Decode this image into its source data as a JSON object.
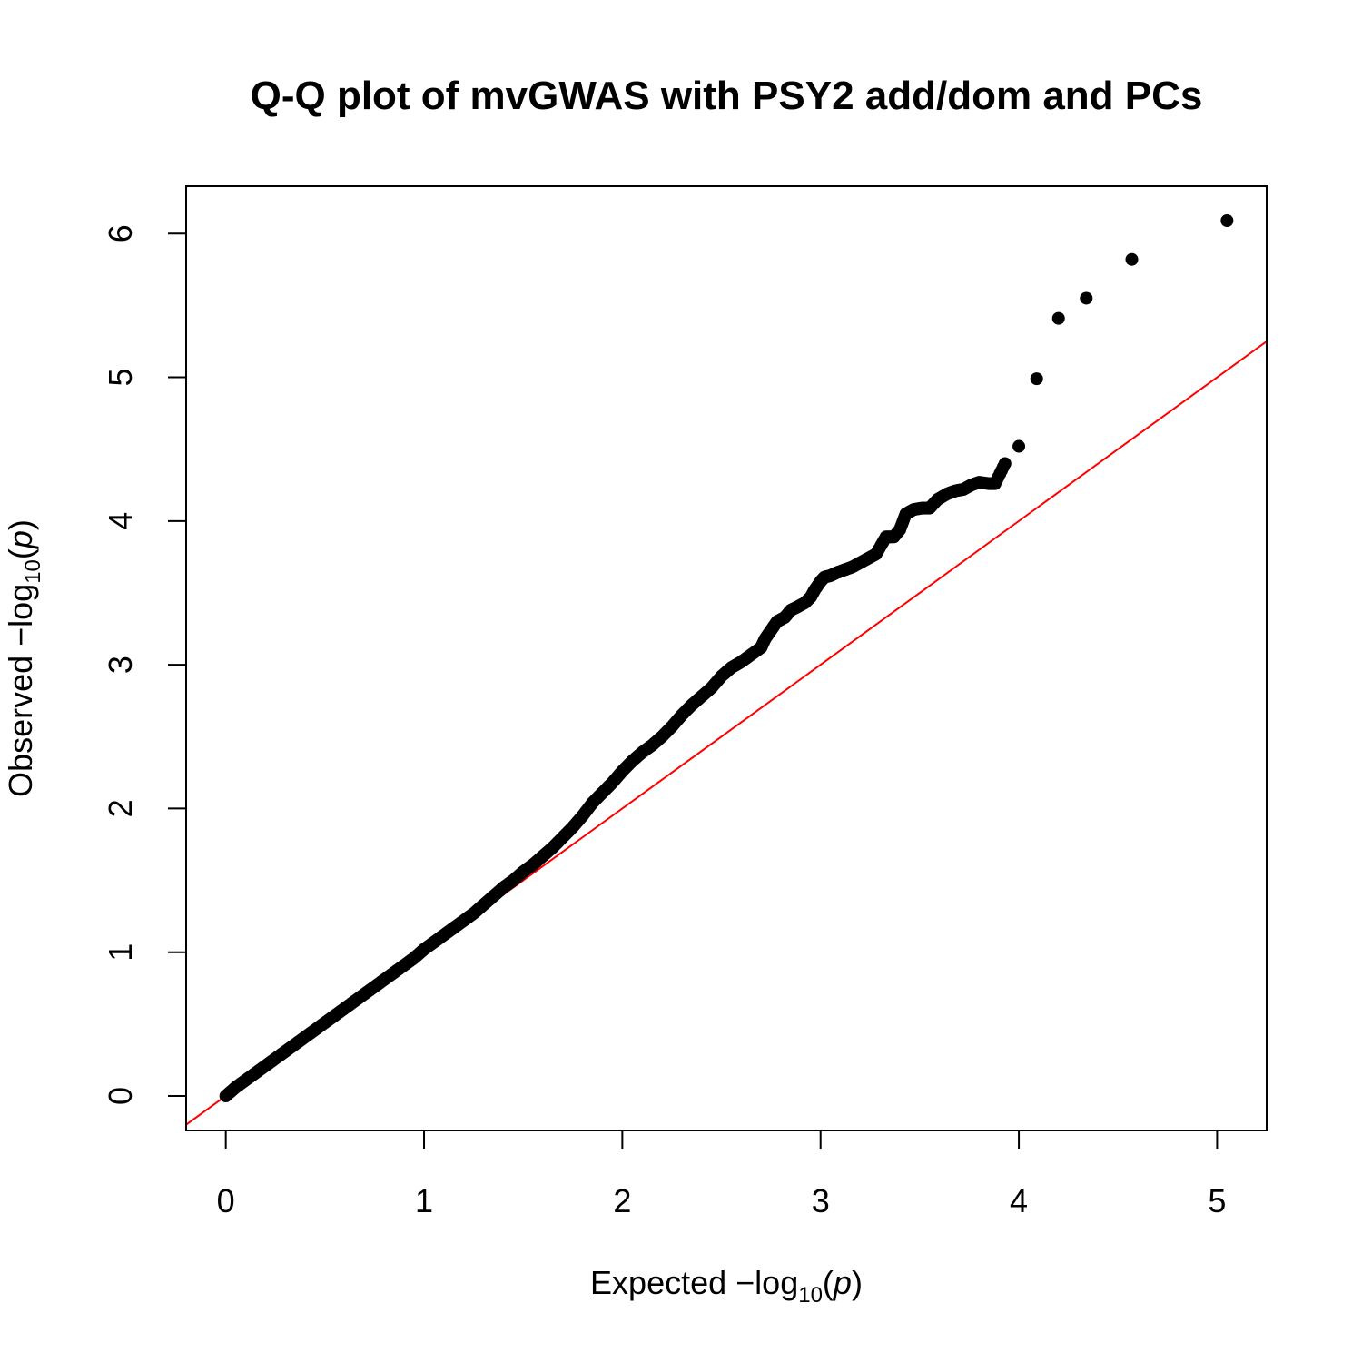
{
  "chart_data": {
    "type": "scatter",
    "title": "Q-Q plot of mvGWAS with PSY2 add/dom and PCs",
    "xlabel": {
      "prefix": "Expected  −log",
      "sub": "10",
      "open": "(",
      "var": "p",
      "close": ")"
    },
    "ylabel": {
      "prefix": "Observed  −log",
      "sub": "10",
      "open": "(",
      "var": "p",
      "close": ")"
    },
    "xlim": [
      -0.2,
      5.25
    ],
    "ylim": [
      -0.24,
      6.33
    ],
    "xticks": [
      "0",
      "1",
      "2",
      "3",
      "4",
      "5"
    ],
    "yticks": [
      "0",
      "1",
      "2",
      "3",
      "4",
      "5",
      "6"
    ],
    "grid": false,
    "reference_line": {
      "slope": 1,
      "intercept": 0,
      "color": "#ff0000"
    },
    "point_color": "#000000",
    "points": [
      [
        0.0,
        0.0
      ],
      [
        0.05,
        0.06
      ],
      [
        0.1,
        0.11
      ],
      [
        0.15,
        0.16
      ],
      [
        0.2,
        0.21
      ],
      [
        0.25,
        0.26
      ],
      [
        0.3,
        0.31
      ],
      [
        0.35,
        0.36
      ],
      [
        0.4,
        0.41
      ],
      [
        0.45,
        0.46
      ],
      [
        0.5,
        0.51
      ],
      [
        0.55,
        0.56
      ],
      [
        0.6,
        0.61
      ],
      [
        0.65,
        0.66
      ],
      [
        0.7,
        0.71
      ],
      [
        0.75,
        0.76
      ],
      [
        0.8,
        0.81
      ],
      [
        0.85,
        0.86
      ],
      [
        0.9,
        0.91
      ],
      [
        0.95,
        0.96
      ],
      [
        1.0,
        1.02
      ],
      [
        1.05,
        1.07
      ],
      [
        1.1,
        1.12
      ],
      [
        1.15,
        1.17
      ],
      [
        1.2,
        1.22
      ],
      [
        1.25,
        1.27
      ],
      [
        1.3,
        1.33
      ],
      [
        1.35,
        1.39
      ],
      [
        1.4,
        1.45
      ],
      [
        1.45,
        1.5
      ],
      [
        1.5,
        1.56
      ],
      [
        1.55,
        1.61
      ],
      [
        1.6,
        1.67
      ],
      [
        1.65,
        1.73
      ],
      [
        1.7,
        1.8
      ],
      [
        1.75,
        1.87
      ],
      [
        1.8,
        1.95
      ],
      [
        1.85,
        2.04
      ],
      [
        1.9,
        2.11
      ],
      [
        1.95,
        2.18
      ],
      [
        2.0,
        2.26
      ],
      [
        2.05,
        2.33
      ],
      [
        2.1,
        2.39
      ],
      [
        2.15,
        2.44
      ],
      [
        2.2,
        2.5
      ],
      [
        2.25,
        2.57
      ],
      [
        2.3,
        2.65
      ],
      [
        2.35,
        2.72
      ],
      [
        2.4,
        2.78
      ],
      [
        2.45,
        2.84
      ],
      [
        2.5,
        2.92
      ],
      [
        2.55,
        2.98
      ],
      [
        2.6,
        3.02
      ],
      [
        2.65,
        3.07
      ],
      [
        2.7,
        3.12
      ],
      [
        2.72,
        3.18
      ],
      [
        2.75,
        3.24
      ],
      [
        2.78,
        3.3
      ],
      [
        2.82,
        3.33
      ],
      [
        2.85,
        3.38
      ],
      [
        2.88,
        3.4
      ],
      [
        2.92,
        3.43
      ],
      [
        2.95,
        3.47
      ],
      [
        2.97,
        3.52
      ],
      [
        3.0,
        3.58
      ],
      [
        3.02,
        3.61
      ],
      [
        3.05,
        3.62
      ],
      [
        3.08,
        3.64
      ],
      [
        3.12,
        3.66
      ],
      [
        3.16,
        3.68
      ],
      [
        3.2,
        3.71
      ],
      [
        3.24,
        3.74
      ],
      [
        3.28,
        3.77
      ],
      [
        3.33,
        3.89
      ],
      [
        3.37,
        3.89
      ],
      [
        3.4,
        3.94
      ],
      [
        3.43,
        4.05
      ],
      [
        3.47,
        4.08
      ],
      [
        3.51,
        4.09
      ],
      [
        3.55,
        4.09
      ],
      [
        3.59,
        4.15
      ],
      [
        3.64,
        4.19
      ],
      [
        3.68,
        4.21
      ],
      [
        3.72,
        4.22
      ],
      [
        3.76,
        4.25
      ],
      [
        3.8,
        4.27
      ],
      [
        3.85,
        4.26
      ],
      [
        3.88,
        4.26
      ],
      [
        3.93,
        4.4
      ],
      [
        4.0,
        4.52
      ],
      [
        4.09,
        4.99
      ],
      [
        4.2,
        5.41
      ],
      [
        4.34,
        5.55
      ],
      [
        4.57,
        5.82
      ],
      [
        5.05,
        6.09
      ]
    ]
  }
}
